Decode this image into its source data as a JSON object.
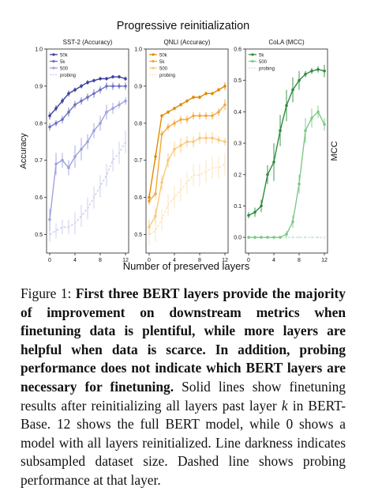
{
  "suptitle": "Progressive reinitialization",
  "xlabel": "Number of preserved layers",
  "caption": {
    "label": "Figure 1:",
    "bold": "First three BERT layers provide the majority of improvement on downstream metrics when finetuning data is plentiful, while more layers are helpful when data is scarce. In addition, probing performance does not indicate which BERT layers are necessary for finetuning.",
    "rest_before_k": "Solid lines show finetuning results after reinitializing all layers past layer",
    "k": "k",
    "rest_after_k": "in BERT-Base. 12 shows the full BERT model, while 0 shows a model with all layers reinitialized. Line darkness indicates subsampled dataset size. Dashed line shows probing performance at that layer."
  },
  "chart_data": [
    {
      "type": "line",
      "title": "SST-2 (Accuracy)",
      "ylabel": "Accuracy",
      "ylabel_side": "left",
      "ylim": [
        0.45,
        1.0
      ],
      "yticks": [
        0.5,
        0.6,
        0.7,
        0.8,
        0.9,
        1.0
      ],
      "xlim": [
        -0.5,
        12.5
      ],
      "xticks": [
        0,
        4,
        8,
        12
      ],
      "x": [
        0,
        1,
        2,
        3,
        4,
        5,
        6,
        7,
        8,
        9,
        10,
        11,
        12
      ],
      "legend": "top-left",
      "grid": false,
      "series": [
        {
          "name": "50k",
          "color": "#3a3f9e",
          "style": "solid",
          "values": [
            0.82,
            0.84,
            0.86,
            0.88,
            0.89,
            0.9,
            0.91,
            0.915,
            0.92,
            0.92,
            0.925,
            0.925,
            0.92
          ],
          "err": [
            0.01,
            0.008,
            0.008,
            0.008,
            0.006,
            0.006,
            0.006,
            0.005,
            0.005,
            0.005,
            0.005,
            0.005,
            0.006
          ]
        },
        {
          "name": "5k",
          "color": "#6b70c4",
          "style": "solid",
          "values": [
            0.79,
            0.8,
            0.81,
            0.83,
            0.85,
            0.86,
            0.87,
            0.88,
            0.89,
            0.9,
            0.9,
            0.9,
            0.9
          ],
          "err": [
            0.01,
            0.008,
            0.01,
            0.012,
            0.01,
            0.01,
            0.01,
            0.012,
            0.01,
            0.01,
            0.01,
            0.008,
            0.01
          ]
        },
        {
          "name": "500",
          "color": "#9da2dc",
          "style": "solid",
          "values": [
            0.54,
            0.69,
            0.7,
            0.68,
            0.71,
            0.73,
            0.75,
            0.78,
            0.8,
            0.83,
            0.84,
            0.85,
            0.86
          ],
          "err": [
            0.03,
            0.03,
            0.02,
            0.02,
            0.03,
            0.03,
            0.02,
            0.02,
            0.02,
            0.02,
            0.015,
            0.01,
            0.01
          ]
        },
        {
          "name": "probing",
          "color": "#c9cced",
          "style": "dashed",
          "values": [
            0.5,
            0.51,
            0.52,
            0.52,
            0.53,
            0.55,
            0.57,
            0.6,
            0.63,
            0.66,
            0.7,
            0.72,
            0.75
          ],
          "err": [
            0.02,
            0.02,
            0.02,
            0.02,
            0.03,
            0.03,
            0.03,
            0.03,
            0.03,
            0.03,
            0.03,
            0.03,
            0.03
          ]
        }
      ]
    },
    {
      "type": "line",
      "title": "QNLI (Accuracy)",
      "ylabel": "",
      "ylim": [
        0.45,
        1.0
      ],
      "yticks": [
        0.5,
        0.6,
        0.7,
        0.8,
        0.9,
        1.0
      ],
      "xlim": [
        -0.5,
        12.5
      ],
      "xticks": [
        0,
        4,
        8,
        12
      ],
      "x": [
        0,
        1,
        2,
        3,
        4,
        5,
        6,
        7,
        8,
        9,
        10,
        11,
        12
      ],
      "legend": "top-left",
      "grid": false,
      "series": [
        {
          "name": "50k",
          "color": "#e08a00",
          "style": "solid",
          "values": [
            0.6,
            0.71,
            0.82,
            0.83,
            0.84,
            0.85,
            0.86,
            0.87,
            0.87,
            0.88,
            0.88,
            0.89,
            0.9
          ],
          "err": [
            0.01,
            0.01,
            0.005,
            0.005,
            0.005,
            0.005,
            0.005,
            0.005,
            0.005,
            0.005,
            0.005,
            0.005,
            0.01
          ]
        },
        {
          "name": "5k",
          "color": "#f2a93b",
          "style": "solid",
          "values": [
            0.59,
            0.61,
            0.77,
            0.79,
            0.8,
            0.81,
            0.81,
            0.82,
            0.82,
            0.82,
            0.82,
            0.83,
            0.85
          ],
          "err": [
            0.01,
            0.01,
            0.01,
            0.01,
            0.01,
            0.01,
            0.01,
            0.01,
            0.01,
            0.01,
            0.01,
            0.01,
            0.015
          ]
        },
        {
          "name": "500",
          "color": "#f8c97a",
          "style": "solid",
          "values": [
            0.52,
            0.55,
            0.64,
            0.7,
            0.73,
            0.74,
            0.75,
            0.75,
            0.76,
            0.76,
            0.76,
            0.755,
            0.75
          ],
          "err": [
            0.02,
            0.02,
            0.02,
            0.02,
            0.02,
            0.02,
            0.015,
            0.015,
            0.015,
            0.015,
            0.015,
            0.01,
            0.01
          ]
        },
        {
          "name": "probing",
          "color": "#fce2b6",
          "style": "dashed",
          "values": [
            0.5,
            0.51,
            0.54,
            0.58,
            0.6,
            0.62,
            0.64,
            0.66,
            0.66,
            0.67,
            0.68,
            0.68,
            0.69
          ],
          "err": [
            0.03,
            0.03,
            0.03,
            0.03,
            0.03,
            0.03,
            0.03,
            0.03,
            0.03,
            0.03,
            0.03,
            0.03,
            0.03
          ]
        }
      ]
    },
    {
      "type": "line",
      "title": "CoLA (MCC)",
      "ylabel": "MCC",
      "ylabel_side": "right",
      "ylim": [
        -0.05,
        0.6
      ],
      "yticks": [
        0.0,
        0.1,
        0.2,
        0.3,
        0.4,
        0.5,
        0.6
      ],
      "xlim": [
        -0.5,
        12.5
      ],
      "xticks": [
        0,
        4,
        8,
        12
      ],
      "x": [
        0,
        1,
        2,
        3,
        4,
        5,
        6,
        7,
        8,
        9,
        10,
        11,
        12
      ],
      "legend": "top-left",
      "grid": false,
      "series": [
        {
          "name": "5k",
          "color": "#2e8b3e",
          "style": "solid",
          "values": [
            0.07,
            0.08,
            0.1,
            0.2,
            0.24,
            0.34,
            0.42,
            0.47,
            0.5,
            0.52,
            0.53,
            0.535,
            0.53
          ],
          "err": [
            0.01,
            0.015,
            0.02,
            0.03,
            0.06,
            0.05,
            0.05,
            0.04,
            0.03,
            0.01,
            0.01,
            0.01,
            0.02
          ]
        },
        {
          "name": "500",
          "color": "#7dc98a",
          "style": "solid",
          "values": [
            0.0,
            0.0,
            0.0,
            0.0,
            0.0,
            0.0,
            0.01,
            0.05,
            0.17,
            0.34,
            0.38,
            0.4,
            0.36
          ],
          "err": [
            0.005,
            0.005,
            0.005,
            0.005,
            0.005,
            0.005,
            0.01,
            0.02,
            0.03,
            0.04,
            0.03,
            0.02,
            0.02
          ]
        },
        {
          "name": "probing",
          "color": "#c4e8ca",
          "style": "dashed",
          "values": [
            0.0,
            0.0,
            0.0,
            0.0,
            0.0,
            0.0,
            0.0,
            0.0,
            0.0,
            0.0,
            0.0,
            0.0,
            0.0
          ],
          "err": [
            0.005,
            0.005,
            0.005,
            0.005,
            0.005,
            0.005,
            0.005,
            0.005,
            0.005,
            0.005,
            0.005,
            0.005,
            0.005
          ]
        }
      ]
    }
  ]
}
